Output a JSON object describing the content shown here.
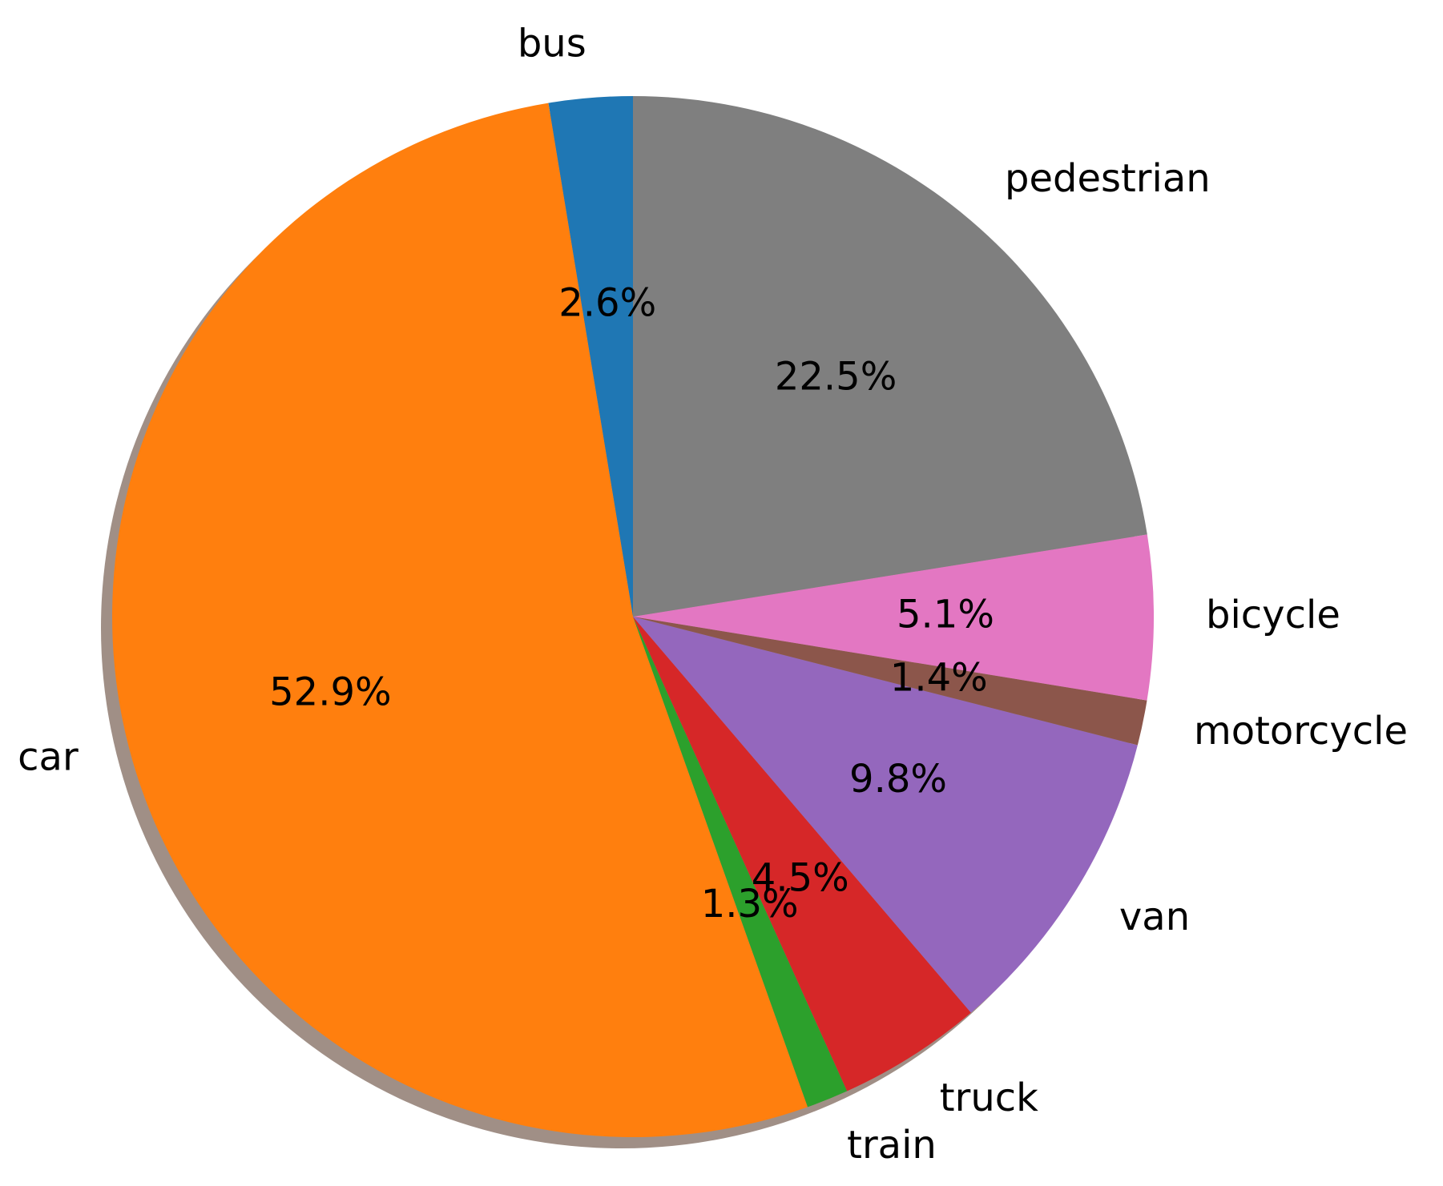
{
  "chart_data": {
    "type": "pie",
    "start_angle_deg": 90,
    "direction": "counterclockwise",
    "shadow": true,
    "slices": [
      {
        "label": "bus",
        "value": 2.6,
        "pct_text": "2.6%",
        "color": "#1f77b4"
      },
      {
        "label": "car",
        "value": 52.9,
        "pct_text": "52.9%",
        "color": "#ff7f0e"
      },
      {
        "label": "train",
        "value": 1.3,
        "pct_text": "1.3%",
        "color": "#2ca02c"
      },
      {
        "label": "truck",
        "value": 4.5,
        "pct_text": "4.5%",
        "color": "#d62728"
      },
      {
        "label": "van",
        "value": 9.8,
        "pct_text": "9.8%",
        "color": "#9467bd"
      },
      {
        "label": "motorcycle",
        "value": 1.4,
        "pct_text": "1.4%",
        "color": "#8c564b"
      },
      {
        "label": "bicycle",
        "value": 5.1,
        "pct_text": "5.1%",
        "color": "#e377c2"
      },
      {
        "label": "pedestrian",
        "value": 22.5,
        "pct_text": "22.5%",
        "color": "#7f7f7f"
      }
    ]
  }
}
